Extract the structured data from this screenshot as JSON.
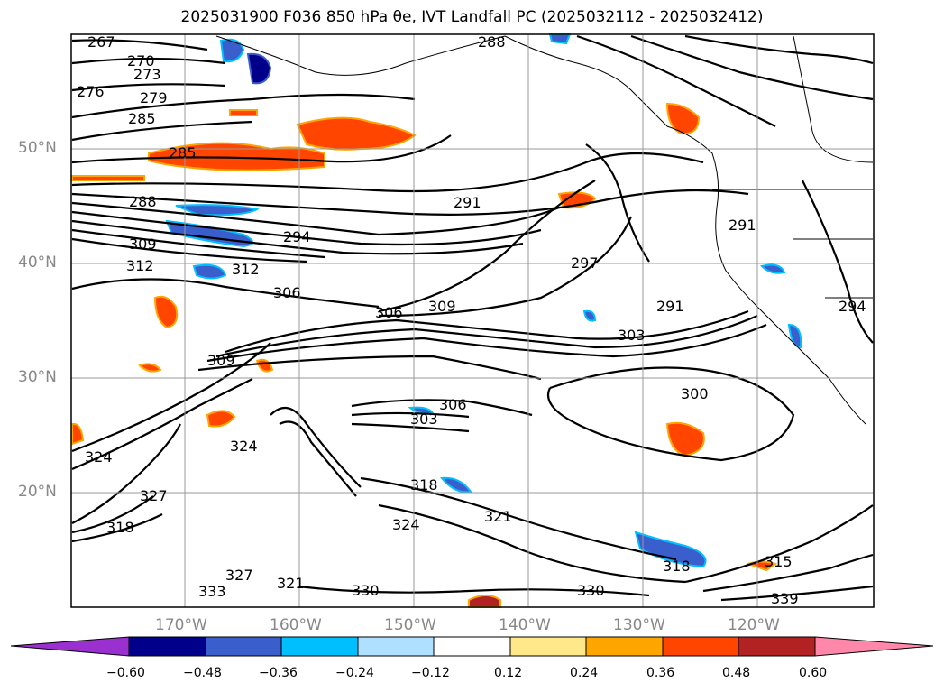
{
  "title": "2025031900 F036 850 hPa θe, IVT Landfall PC (2025032112 - 2025032412)",
  "lat_labels": [
    "50°N",
    "40°N",
    "30°N",
    "20°N"
  ],
  "lon_labels": [
    "170°W",
    "160°W",
    "150°W",
    "140°W",
    "130°W",
    "120°W"
  ],
  "colorbar": {
    "ticks": [
      "−0.60",
      "−0.48",
      "−0.36",
      "−0.24",
      "−0.12",
      "0.12",
      "0.24",
      "0.36",
      "0.48",
      "0.60"
    ],
    "colors": [
      "#9b30d0",
      "#00008b",
      "#3a5fcd",
      "#00bfff",
      "#b0e0ff",
      "#ffffff",
      "#ffe88a",
      "#ffa500",
      "#ff4500",
      "#b22222",
      "#ff88aa"
    ]
  },
  "contour_labels": [
    "267",
    "270",
    "273",
    "276",
    "279",
    "285",
    "285",
    "288",
    "288",
    "291",
    "291",
    "291",
    "294",
    "294",
    "297",
    "300",
    "303",
    "303",
    "306",
    "306",
    "306",
    "309",
    "309",
    "309",
    "312",
    "312",
    "315",
    "318",
    "318",
    "318",
    "321",
    "321",
    "324",
    "324",
    "324",
    "327",
    "327",
    "330",
    "330",
    "333",
    "339"
  ]
}
